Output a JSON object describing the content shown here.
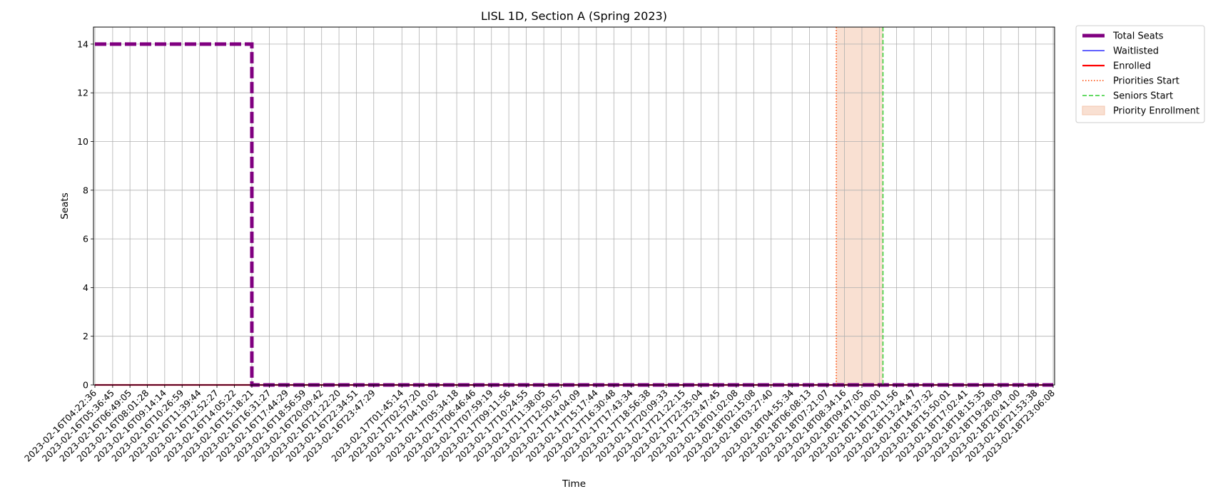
{
  "chart_data": {
    "type": "line",
    "title": "LISL 1D, Section A (Spring 2023)",
    "xlabel": "Time",
    "ylabel": "Seats",
    "ylim": [
      0,
      14.7
    ],
    "yticks": [
      0,
      2,
      4,
      6,
      8,
      10,
      12,
      14
    ],
    "grid": true,
    "legend_position": "outside-top-right",
    "x": [
      "2023-02-16T04:22:36",
      "2023-02-16T05:36:45",
      "2023-02-16T06:49:05",
      "2023-02-16T08:01:28",
      "2023-02-16T09:14:14",
      "2023-02-16T10:26:59",
      "2023-02-16T11:39:44",
      "2023-02-16T12:52:27",
      "2023-02-16T14:05:22",
      "2023-02-16T15:18:21",
      "2023-02-16T16:31:27",
      "2023-02-16T17:44:29",
      "2023-02-16T18:56:59",
      "2023-02-16T20:09:42",
      "2023-02-16T21:22:20",
      "2023-02-16T22:34:51",
      "2023-02-16T23:47:29",
      "2023-02-17T01:45:14",
      "2023-02-17T02:57:20",
      "2023-02-17T04:10:02",
      "2023-02-17T05:34:18",
      "2023-02-17T06:46:46",
      "2023-02-17T07:59:19",
      "2023-02-17T09:11:56",
      "2023-02-17T10:24:55",
      "2023-02-17T11:38:05",
      "2023-02-17T12:50:57",
      "2023-02-17T14:04:09",
      "2023-02-17T15:17:44",
      "2023-02-17T16:30:48",
      "2023-02-17T17:43:34",
      "2023-02-17T18:56:38",
      "2023-02-17T20:09:33",
      "2023-02-17T21:22:15",
      "2023-02-17T22:35:04",
      "2023-02-17T23:47:45",
      "2023-02-18T01:02:08",
      "2023-02-18T02:15:08",
      "2023-02-18T03:27:40",
      "2023-02-18T04:55:34",
      "2023-02-18T06:08:13",
      "2023-02-18T07:21:07",
      "2023-02-18T08:34:16",
      "2023-02-18T09:47:05",
      "2023-02-18T11:00:00",
      "2023-02-18T12:11:56",
      "2023-02-18T13:24:47",
      "2023-02-18T14:37:32",
      "2023-02-18T15:50:01",
      "2023-02-18T17:02:41",
      "2023-02-18T18:15:35",
      "2023-02-18T19:28:09",
      "2023-02-18T20:41:00",
      "2023-02-18T21:53:38",
      "2023-02-18T23:06:08"
    ],
    "series": [
      {
        "name": "Total Seats",
        "color": "#800080",
        "style": "dashed-thick",
        "values": [
          14,
          14,
          14,
          14,
          14,
          14,
          14,
          14,
          14,
          0,
          0,
          0,
          0,
          0,
          0,
          0,
          0,
          0,
          0,
          0,
          0,
          0,
          0,
          0,
          0,
          0,
          0,
          0,
          0,
          0,
          0,
          0,
          0,
          0,
          0,
          0,
          0,
          0,
          0,
          0,
          0,
          0,
          0,
          0,
          0,
          0,
          0,
          0,
          0,
          0,
          0,
          0,
          0,
          0,
          0
        ]
      },
      {
        "name": "Waitlisted",
        "color": "#0000ff",
        "style": "solid-thin",
        "values": [
          0,
          0,
          0,
          0,
          0,
          0,
          0,
          0,
          0,
          0,
          0,
          0,
          0,
          0,
          0,
          0,
          0,
          0,
          0,
          0,
          0,
          0,
          0,
          0,
          0,
          0,
          0,
          0,
          0,
          0,
          0,
          0,
          0,
          0,
          0,
          0,
          0,
          0,
          0,
          0,
          0,
          0,
          0,
          0,
          0,
          0,
          0,
          0,
          0,
          0,
          0,
          0,
          0,
          0,
          0
        ]
      },
      {
        "name": "Enrolled",
        "color": "#ff0000",
        "style": "solid",
        "values": [
          0,
          0,
          0,
          0,
          0,
          0,
          0,
          0,
          0,
          0,
          0,
          0,
          0,
          0,
          0,
          0,
          0,
          0,
          0,
          0,
          0,
          0,
          0,
          0,
          0,
          0,
          0,
          0,
          0,
          0,
          0,
          0,
          0,
          0,
          0,
          0,
          0,
          0,
          0,
          0,
          0,
          0,
          0,
          0,
          0,
          0,
          0,
          0,
          0,
          0,
          0,
          0,
          0,
          0,
          0
        ]
      }
    ],
    "markers": [
      {
        "name": "Priorities Start",
        "at": "2023-02-18T08:00:00",
        "color": "#ff4500",
        "style": "dotted"
      },
      {
        "name": "Seniors Start",
        "at": "2023-02-18T11:15:00",
        "color": "#32cd32",
        "style": "dashed"
      }
    ],
    "spans": [
      {
        "name": "Priority Enrollment",
        "from": "2023-02-18T08:00:00",
        "to": "2023-02-18T11:15:00",
        "color": "#f4c6ad"
      }
    ]
  }
}
